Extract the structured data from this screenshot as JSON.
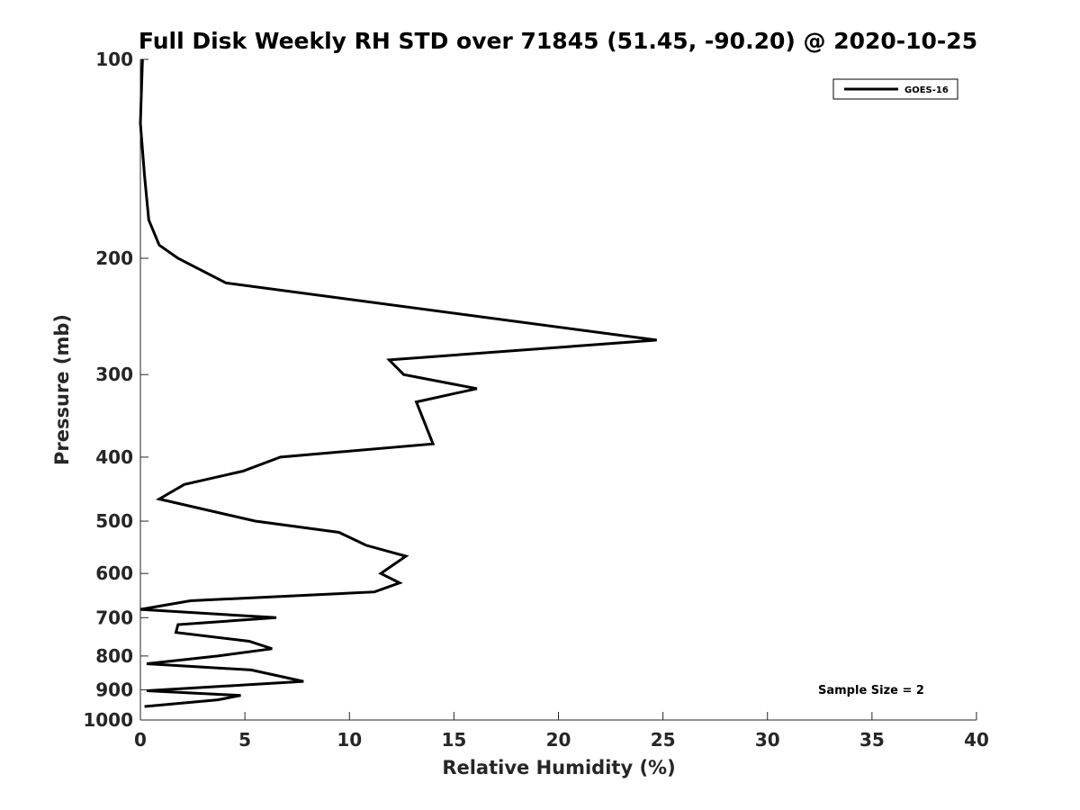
{
  "chart_data": {
    "type": "line",
    "title": "Full Disk Weekly RH STD over 71845 (51.45, -90.20) @ 2020-10-25",
    "xlabel": "Relative Humidity (%)",
    "ylabel": "Pressure (mb)",
    "xlim": [
      0,
      40
    ],
    "ylim": [
      100,
      1000
    ],
    "yscale": "log",
    "yreversed": true,
    "xticks": [
      0,
      5,
      10,
      15,
      20,
      25,
      30,
      35,
      40
    ],
    "yticks": [
      100,
      200,
      300,
      400,
      500,
      600,
      700,
      800,
      900,
      1000
    ],
    "grid": false,
    "legend_position": "top-right",
    "series": [
      {
        "name": "GOES-16",
        "color": "#000000",
        "points": [
          {
            "x": 0.1,
            "p": 100
          },
          {
            "x": 0.0,
            "p": 125
          },
          {
            "x": 0.2,
            "p": 150
          },
          {
            "x": 0.4,
            "p": 175
          },
          {
            "x": 0.9,
            "p": 191
          },
          {
            "x": 1.8,
            "p": 200
          },
          {
            "x": 4.1,
            "p": 218
          },
          {
            "x": 24.7,
            "p": 266
          },
          {
            "x": 11.9,
            "p": 285
          },
          {
            "x": 12.6,
            "p": 300
          },
          {
            "x": 16.1,
            "p": 315
          },
          {
            "x": 13.2,
            "p": 330
          },
          {
            "x": 14.0,
            "p": 382
          },
          {
            "x": 6.7,
            "p": 400
          },
          {
            "x": 4.9,
            "p": 420
          },
          {
            "x": 2.1,
            "p": 440
          },
          {
            "x": 0.9,
            "p": 463
          },
          {
            "x": 5.5,
            "p": 500
          },
          {
            "x": 9.5,
            "p": 520
          },
          {
            "x": 10.8,
            "p": 544
          },
          {
            "x": 12.7,
            "p": 565
          },
          {
            "x": 11.5,
            "p": 600
          },
          {
            "x": 12.4,
            "p": 620
          },
          {
            "x": 11.2,
            "p": 640
          },
          {
            "x": 2.4,
            "p": 660
          },
          {
            "x": 0.0,
            "p": 680
          },
          {
            "x": 6.5,
            "p": 700
          },
          {
            "x": 1.8,
            "p": 717
          },
          {
            "x": 1.7,
            "p": 737
          },
          {
            "x": 5.2,
            "p": 760
          },
          {
            "x": 6.3,
            "p": 780
          },
          {
            "x": 3.7,
            "p": 800
          },
          {
            "x": 0.3,
            "p": 822
          },
          {
            "x": 5.3,
            "p": 840
          },
          {
            "x": 7.8,
            "p": 874
          },
          {
            "x": 0.3,
            "p": 903
          },
          {
            "x": 4.8,
            "p": 918
          },
          {
            "x": 3.7,
            "p": 932
          },
          {
            "x": 0.2,
            "p": 954
          }
        ]
      }
    ],
    "annotation": "Sample Size = 2"
  }
}
